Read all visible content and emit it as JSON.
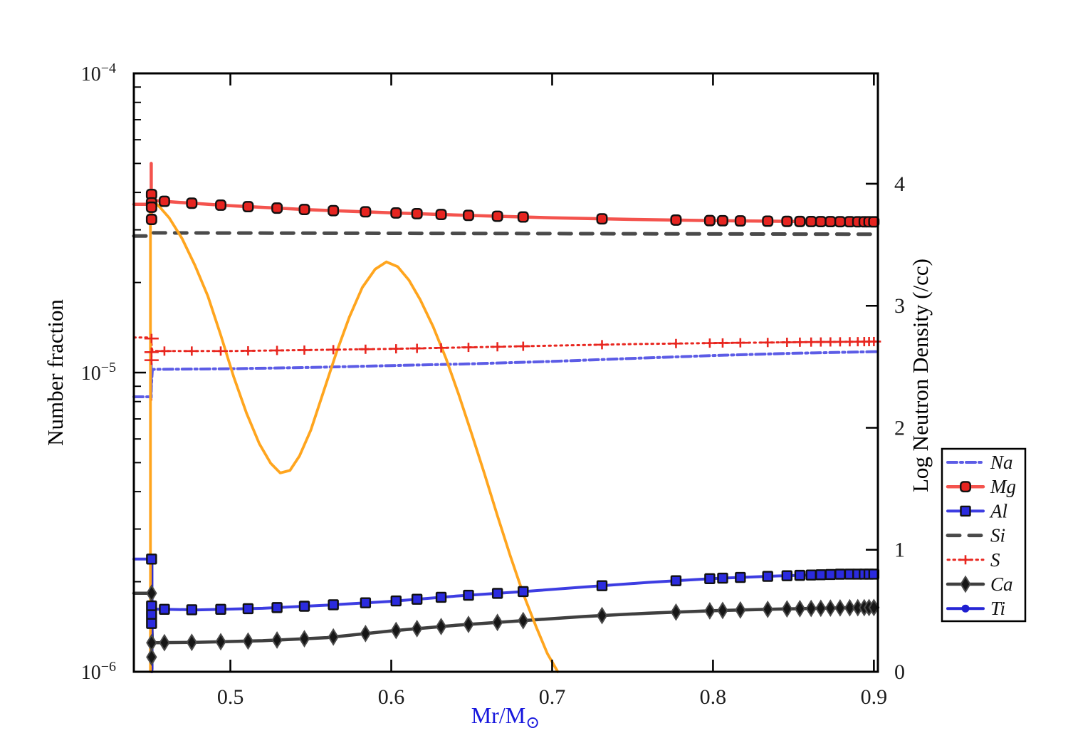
{
  "chart_data": {
    "type": "line",
    "title": "",
    "xlabel": {
      "main": "Mr/M",
      "sub": "⊙"
    },
    "ylabel_left": "Number fraction",
    "ylabel_right": "Log Neutron Density (/cc)",
    "axis_title_color": "#1717dd",
    "tick_label_color": "#1c1c1c",
    "x_range": [
      0.44,
      0.9025
    ],
    "x_ticks": [
      {
        "v": 0.5,
        "label": "0.5"
      },
      {
        "v": 0.6,
        "label": "0.6"
      },
      {
        "v": 0.7,
        "label": "0.7"
      },
      {
        "v": 0.8,
        "label": "0.8"
      },
      {
        "v": 0.9,
        "label": "0.9"
      }
    ],
    "y_left": {
      "scale": "log",
      "range": [
        1e-06,
        0.0001
      ],
      "major_ticks": [
        {
          "v": 1e-06,
          "base": "10",
          "exp": "−6"
        },
        {
          "v": 1e-05,
          "base": "10",
          "exp": "−5"
        },
        {
          "v": 0.0001,
          "base": "10",
          "exp": "−4"
        }
      ],
      "minor_decades": [
        1e-06,
        1e-05
      ]
    },
    "y_right": {
      "scale": "linear",
      "range": [
        0,
        4.905
      ],
      "ticks": [
        {
          "v": 0,
          "label": "0"
        },
        {
          "v": 1,
          "label": "1"
        },
        {
          "v": 2,
          "label": "2"
        },
        {
          "v": 3,
          "label": "3"
        },
        {
          "v": 4,
          "label": "4"
        }
      ]
    },
    "grid": false,
    "marker_x": [
      0.459,
      0.476,
      0.494,
      0.511,
      0.529,
      0.546,
      0.564,
      0.584,
      0.603,
      0.616,
      0.631,
      0.648,
      0.666,
      0.682,
      0.731,
      0.777,
      0.798,
      0.806,
      0.817,
      0.834,
      0.846,
      0.854,
      0.861,
      0.867,
      0.873,
      0.879,
      0.885,
      0.89,
      0.894,
      0.897,
      0.9
    ],
    "series": [
      {
        "id": "si",
        "label": "Si",
        "axis": "left",
        "color": "#4a4a4a",
        "width": 5,
        "dash": "17 13",
        "marker": null,
        "points": [
          [
            0.44,
            2.86e-05
          ],
          [
            0.4505,
            2.86e-05
          ],
          [
            0.4515,
            2.93e-05
          ],
          [
            0.7,
            2.915e-05
          ],
          [
            0.9025,
            2.9e-05
          ]
        ]
      },
      {
        "id": "s",
        "label": "S",
        "axis": "left",
        "color": "#e8261f",
        "width": 3,
        "dash": "2.5 5.5",
        "marker": {
          "shape": "plus",
          "fill": "#e8261f",
          "edge": "#e8261f",
          "size": 20
        },
        "points": [
          [
            0.44,
            1.31e-05
          ],
          [
            0.4505,
            1.31e-05
          ],
          [
            0.4515,
            1.18e-05
          ],
          [
            0.5,
            1.18e-05
          ],
          [
            0.55,
            1.19e-05
          ],
          [
            0.6,
            1.2e-05
          ],
          [
            0.65,
            1.215e-05
          ],
          [
            0.7,
            1.23e-05
          ],
          [
            0.75,
            1.245e-05
          ],
          [
            0.8,
            1.255e-05
          ],
          [
            0.85,
            1.263e-05
          ],
          [
            0.9025,
            1.27e-05
          ]
        ],
        "spike": {
          "x": 0.4508,
          "y1": 1.32e-05,
          "y2": 8.1e-06
        },
        "scatter": {
          "x": 0.451,
          "ys": [
            1.3e-05,
            1.17e-05,
            1.1e-05
          ]
        }
      },
      {
        "id": "na",
        "label": "Na",
        "axis": "left",
        "color": "#5c5ce6",
        "width": 4,
        "dash": "13 5 3 5",
        "marker": null,
        "points": [
          [
            0.44,
            8.3e-06
          ],
          [
            0.4505,
            8.3e-06
          ],
          [
            0.4515,
            1.025e-05
          ],
          [
            0.5,
            1.03e-05
          ],
          [
            0.55,
            1.04e-05
          ],
          [
            0.6,
            1.055e-05
          ],
          [
            0.65,
            1.07e-05
          ],
          [
            0.7,
            1.09e-05
          ],
          [
            0.75,
            1.115e-05
          ],
          [
            0.8,
            1.14e-05
          ],
          [
            0.85,
            1.16e-05
          ],
          [
            0.9025,
            1.175e-05
          ]
        ],
        "spike": {
          "x": 0.4508,
          "y1": 1.07e-05,
          "y2": 8.1e-06
        }
      },
      {
        "id": "ca",
        "label": "Ca",
        "axis": "left",
        "color": "#3f3f3f",
        "width": 4.5,
        "dash": null,
        "marker": {
          "shape": "diamond",
          "fill": "#161616",
          "edge": "#4a4a4a",
          "size": 21
        },
        "points": [
          [
            0.44,
            1.83e-06
          ],
          [
            0.4505,
            1.83e-06
          ],
          [
            0.4515,
            1.25e-06
          ],
          [
            0.48,
            1.255e-06
          ],
          [
            0.52,
            1.27e-06
          ],
          [
            0.56,
            1.3e-06
          ],
          [
            0.6,
            1.37e-06
          ],
          [
            0.64,
            1.43e-06
          ],
          [
            0.68,
            1.48e-06
          ],
          [
            0.72,
            1.53e-06
          ],
          [
            0.76,
            1.57e-06
          ],
          [
            0.8,
            1.6e-06
          ],
          [
            0.84,
            1.62e-06
          ],
          [
            0.88,
            1.635e-06
          ],
          [
            0.9025,
            1.64e-06
          ]
        ],
        "spike": {
          "x": 0.4512,
          "y1": 1.85e-06,
          "y2": 1.02e-06
        },
        "scatter": {
          "x": 0.451,
          "ys": [
            1.83e-06,
            1.25e-06,
            1.12e-06
          ]
        }
      },
      {
        "id": "al",
        "label": "Al",
        "axis": "left",
        "color": "#3d3de2",
        "width": 4,
        "dash": null,
        "marker": {
          "shape": "square",
          "fill": "#2b2bdf",
          "edge": "#111111",
          "size": 13
        },
        "points": [
          [
            0.44,
            2.38e-06
          ],
          [
            0.4505,
            2.38e-06
          ],
          [
            0.4515,
            1.62e-06
          ],
          [
            0.48,
            1.61e-06
          ],
          [
            0.52,
            1.63e-06
          ],
          [
            0.56,
            1.67e-06
          ],
          [
            0.6,
            1.72e-06
          ],
          [
            0.64,
            1.79e-06
          ],
          [
            0.68,
            1.85e-06
          ],
          [
            0.72,
            1.92e-06
          ],
          [
            0.76,
            1.99e-06
          ],
          [
            0.8,
            2.05e-06
          ],
          [
            0.84,
            2.09e-06
          ],
          [
            0.88,
            2.12e-06
          ],
          [
            0.9025,
            2.12e-06
          ]
        ],
        "spike": {
          "x": 0.4512,
          "y1": 2.42e-06,
          "y2": 1.02e-06
        },
        "scatter": {
          "x": 0.451,
          "ys": [
            2.38e-06,
            1.66e-06,
            1.55e-06,
            1.45e-06
          ]
        }
      },
      {
        "id": "ti",
        "label": "Ti",
        "axis": "left",
        "color": "#2626d6",
        "width": 4,
        "dash": null,
        "marker": {
          "shape": "circle",
          "fill": "#1f1fd0",
          "edge": "#1f1fd0",
          "size": 11
        },
        "points": [],
        "spike": {
          "x": 0.4512,
          "y1": 2.45e-06,
          "y2": 1e-06
        }
      },
      {
        "id": "mg",
        "label": "Mg",
        "axis": "left",
        "color": "#f4534d",
        "width": 4.5,
        "dash": null,
        "marker": {
          "shape": "rsquare",
          "fill": "#e62420",
          "edge": "#111111",
          "size": 13.5
        },
        "points": [
          [
            0.44,
            3.65e-05
          ],
          [
            0.4505,
            3.65e-05
          ],
          [
            0.4515,
            3.76e-05
          ],
          [
            0.47,
            3.7e-05
          ],
          [
            0.5,
            3.61e-05
          ],
          [
            0.55,
            3.5e-05
          ],
          [
            0.6,
            3.42e-05
          ],
          [
            0.65,
            3.35e-05
          ],
          [
            0.7,
            3.29e-05
          ],
          [
            0.75,
            3.25e-05
          ],
          [
            0.8,
            3.22e-05
          ],
          [
            0.85,
            3.2e-05
          ],
          [
            0.9025,
            3.19e-05
          ]
        ],
        "spike": {
          "x": 0.4508,
          "y1": 5e-05,
          "y2": 3.25e-05
        },
        "scatter": {
          "x": 0.451,
          "ys": [
            3.94e-05,
            3.69e-05,
            3.57e-05,
            3.25e-05
          ]
        }
      },
      {
        "id": "neutron",
        "label": "",
        "axis": "right",
        "color": "#ffa51e",
        "width": 3.8,
        "dash": null,
        "marker": null,
        "points": [
          [
            0.4503,
            0
          ],
          [
            0.4503,
            3.87
          ],
          [
            0.452,
            3.86
          ],
          [
            0.456,
            3.81
          ],
          [
            0.462,
            3.72
          ],
          [
            0.47,
            3.55
          ],
          [
            0.478,
            3.33
          ],
          [
            0.486,
            3.08
          ],
          [
            0.494,
            2.76
          ],
          [
            0.502,
            2.42
          ],
          [
            0.51,
            2.12
          ],
          [
            0.518,
            1.87
          ],
          [
            0.525,
            1.71
          ],
          [
            0.531,
            1.63
          ],
          [
            0.537,
            1.65
          ],
          [
            0.543,
            1.77
          ],
          [
            0.55,
            1.98
          ],
          [
            0.558,
            2.3
          ],
          [
            0.566,
            2.62
          ],
          [
            0.574,
            2.91
          ],
          [
            0.582,
            3.15
          ],
          [
            0.59,
            3.3
          ],
          [
            0.597,
            3.36
          ],
          [
            0.604,
            3.32
          ],
          [
            0.611,
            3.21
          ],
          [
            0.618,
            3.05
          ],
          [
            0.626,
            2.83
          ],
          [
            0.634,
            2.57
          ],
          [
            0.642,
            2.27
          ],
          [
            0.65,
            1.95
          ],
          [
            0.658,
            1.62
          ],
          [
            0.666,
            1.28
          ],
          [
            0.674,
            0.95
          ],
          [
            0.682,
            0.64
          ],
          [
            0.69,
            0.37
          ],
          [
            0.697,
            0.15
          ],
          [
            0.7035,
            0
          ]
        ]
      }
    ]
  },
  "legend": {
    "order": [
      "na",
      "mg",
      "al",
      "si",
      "s",
      "ca",
      "ti"
    ],
    "labels": {
      "na": "Na",
      "mg": "Mg",
      "al": "Al",
      "si": "Si",
      "s": "S",
      "ca": "Ca",
      "ti": "Ti"
    },
    "border_color": "#000000",
    "background": "#ffffff",
    "text_color": "#111111"
  }
}
